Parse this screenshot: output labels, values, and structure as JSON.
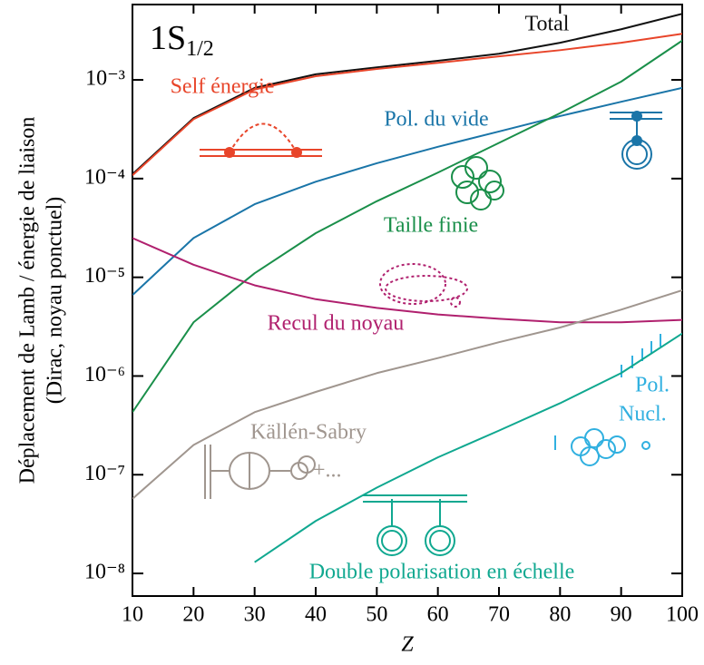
{
  "chart_data": {
    "type": "line",
    "title": "1S",
    "title_subscript": "1/2",
    "xlabel": "Z",
    "ylabel": [
      "Déplacement de Lamb / énergie de liaison",
      "(Dirac, noyau ponctuel)"
    ],
    "x": [
      10,
      20,
      30,
      40,
      50,
      60,
      70,
      80,
      90,
      100
    ],
    "xlim": [
      10,
      100
    ],
    "xticks": [
      10,
      20,
      30,
      40,
      50,
      60,
      70,
      80,
      90,
      100
    ],
    "ylim": [
      5.9e-09,
      0.0058
    ],
    "log_y": true,
    "yticks": [
      {
        "value": 1e-08,
        "label": "10⁻⁸"
      },
      {
        "value": 1e-07,
        "label": "10⁻⁷"
      },
      {
        "value": 1e-06,
        "label": "10⁻⁶"
      },
      {
        "value": 1e-05,
        "label": "10⁻⁵"
      },
      {
        "value": 0.0001,
        "label": "10⁻⁴"
      },
      {
        "value": 0.001,
        "label": "10⁻³"
      }
    ],
    "series": [
      {
        "name": "Total",
        "color": "#111111",
        "values": [
          0.000111,
          0.00041,
          0.00083,
          0.00114,
          0.00134,
          0.00156,
          0.00184,
          0.00238,
          0.00326,
          0.00467
        ]
      },
      {
        "name": "Self énergie",
        "color": "#e8452a",
        "values": [
          0.000108,
          0.0004,
          0.0008,
          0.00109,
          0.00129,
          0.00149,
          0.00173,
          0.002,
          0.00238,
          0.00293
        ]
      },
      {
        "name": "Pol. du vide",
        "color": "#1a75a8",
        "values": [
          6.6e-06,
          2.5e-05,
          5.5e-05,
          9.3e-05,
          0.000143,
          0.00021,
          0.0003,
          0.00043,
          0.0006,
          0.00083
        ]
      },
      {
        "name": "Taille finie",
        "color": "#1a8f4a",
        "values": [
          4.3e-07,
          3.5e-06,
          1.1e-05,
          2.8e-05,
          5.9e-05,
          0.000115,
          0.00023,
          0.00046,
          0.00096,
          0.0025
        ]
      },
      {
        "name": "Recul du noyau",
        "color": "#b0206e",
        "values": [
          2.5e-05,
          1.34e-05,
          8.3e-06,
          6e-06,
          4.9e-06,
          4.2e-06,
          3.8e-06,
          3.5e-06,
          3.5e-06,
          3.7e-06
        ]
      },
      {
        "name": "Källén-Sabry",
        "color": "#a0968f",
        "values": [
          5.7e-08,
          2e-07,
          4.3e-07,
          6.9e-07,
          1.07e-06,
          1.52e-06,
          2.2e-06,
          3.1e-06,
          4.7e-06,
          7.4e-06
        ]
      },
      {
        "name": "Double polarisation en échelle",
        "color": "#10a890",
        "values": [
          null,
          null,
          1.3e-08,
          3.4e-08,
          7.4e-08,
          1.5e-07,
          2.8e-07,
          5.3e-07,
          1.07e-06,
          2.7e-06
        ]
      }
    ],
    "annotations": [
      "Pol.",
      "Nucl.",
      "+..."
    ]
  }
}
